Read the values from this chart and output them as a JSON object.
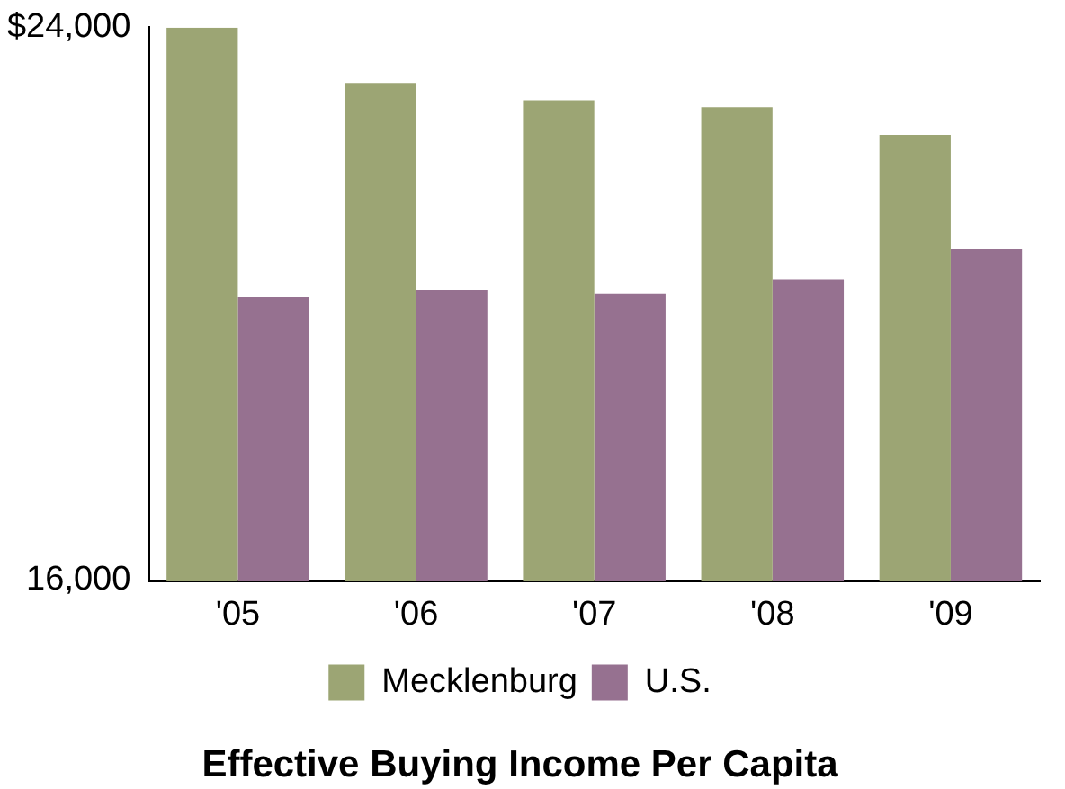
{
  "chart_data": {
    "type": "bar",
    "title": "Effective Buying Income Per Capita",
    "categories": [
      "'05",
      "'06",
      "'07",
      "'08",
      "'09"
    ],
    "series": [
      {
        "name": "Mecklenburg",
        "color": "#9ca574",
        "values": [
          24000,
          23200,
          22950,
          22850,
          22450
        ]
      },
      {
        "name": "U.S.",
        "color": "#967190",
        "values": [
          20100,
          20200,
          20150,
          20350,
          20800
        ]
      }
    ],
    "ylim": [
      16000,
      24000
    ],
    "yticks": [
      {
        "value": 16000,
        "label": "16,000"
      },
      {
        "value": 24000,
        "label": "$24,000"
      }
    ],
    "grid": false,
    "legend": "bottom"
  }
}
